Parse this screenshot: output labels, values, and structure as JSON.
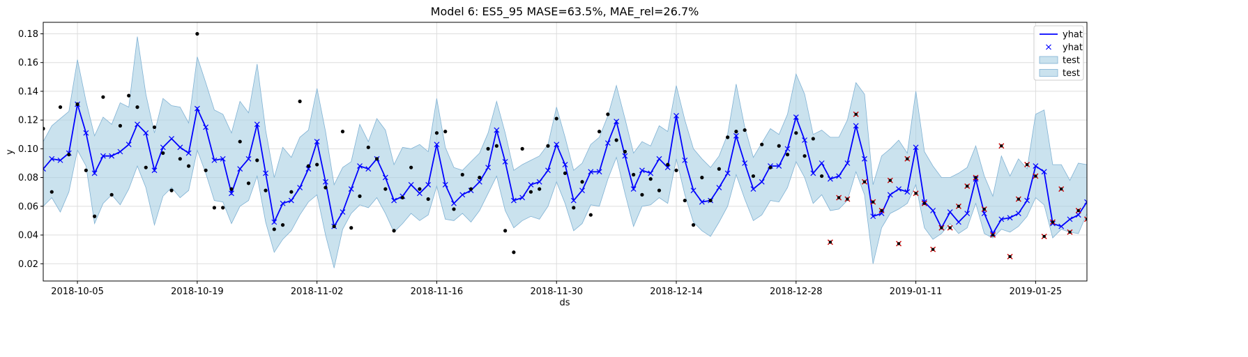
{
  "chart_data": {
    "type": "line",
    "title": "Model 6: ES5_95 MASE=63.5%, MAE_rel=26.7%",
    "xlabel": "ds",
    "ylabel": "y",
    "x_range": [
      "2018-10-01",
      "2019-01-31"
    ],
    "ylim": [
      0.008,
      0.188
    ],
    "grid": true,
    "legend_position": "top-right",
    "x_ticks": [
      "2018-10-05",
      "2018-10-19",
      "2018-11-02",
      "2018-11-16",
      "2018-11-30",
      "2018-12-14",
      "2018-12-28",
      "2019-01-11",
      "2019-01-25"
    ],
    "y_ticks": [
      0.02,
      0.04,
      0.06,
      0.08,
      0.1,
      0.12,
      0.14,
      0.16,
      0.18
    ],
    "y_tick_labels": [
      "0.02",
      "0.04",
      "0.06",
      "0.08",
      "0.10",
      "0.12",
      "0.14",
      "0.16",
      "0.18"
    ],
    "legend": [
      {
        "label": "yhat",
        "kind": "line"
      },
      {
        "label": "yhat",
        "kind": "marker"
      },
      {
        "label": "test",
        "kind": "band"
      },
      {
        "label": "test",
        "kind": "band"
      }
    ],
    "colors": {
      "forecast": "#0000ff",
      "band": "#a6cee3",
      "band_edge": "#7fb1d3",
      "actual": "#000000",
      "test_marker": "#cc0000",
      "grid": "#dddddd"
    },
    "start_date": "2018-10-01",
    "yhat": [
      0.086,
      0.093,
      0.092,
      0.097,
      0.131,
      0.111,
      0.083,
      0.095,
      0.095,
      0.098,
      0.103,
      0.117,
      0.111,
      0.085,
      0.101,
      0.107,
      0.101,
      0.097,
      0.128,
      0.115,
      0.092,
      0.093,
      0.069,
      0.086,
      0.093,
      0.117,
      0.083,
      0.049,
      0.062,
      0.064,
      0.073,
      0.086,
      0.105,
      0.077,
      0.046,
      0.056,
      0.072,
      0.088,
      0.086,
      0.093,
      0.08,
      0.064,
      0.067,
      0.075,
      0.069,
      0.075,
      0.103,
      0.075,
      0.062,
      0.068,
      0.071,
      0.077,
      0.087,
      0.113,
      0.091,
      0.064,
      0.066,
      0.075,
      0.077,
      0.085,
      0.103,
      0.089,
      0.064,
      0.071,
      0.084,
      0.084,
      0.104,
      0.119,
      0.095,
      0.072,
      0.085,
      0.083,
      0.093,
      0.087,
      0.123,
      0.092,
      0.071,
      0.063,
      0.064,
      0.073,
      0.083,
      0.109,
      0.09,
      0.072,
      0.077,
      0.088,
      0.088,
      0.1,
      0.122,
      0.106,
      0.083,
      0.09,
      0.079,
      0.081,
      0.09,
      0.116,
      0.093,
      0.053,
      0.055,
      0.068,
      0.072,
      0.07,
      0.101,
      0.063,
      0.057,
      0.045,
      0.056,
      0.049,
      0.055,
      0.079,
      0.055,
      0.041,
      0.051,
      0.052,
      0.055,
      0.064,
      0.088,
      0.084,
      0.048,
      0.046,
      0.051,
      0.054,
      0.063
    ],
    "lower": [
      0.06,
      0.066,
      0.056,
      0.07,
      0.099,
      0.088,
      0.048,
      0.062,
      0.068,
      0.061,
      0.072,
      0.088,
      0.073,
      0.047,
      0.067,
      0.073,
      0.066,
      0.071,
      0.099,
      0.083,
      0.064,
      0.063,
      0.048,
      0.06,
      0.064,
      0.081,
      0.049,
      0.028,
      0.037,
      0.043,
      0.054,
      0.063,
      0.068,
      0.04,
      0.017,
      0.044,
      0.055,
      0.061,
      0.059,
      0.066,
      0.055,
      0.042,
      0.048,
      0.055,
      0.05,
      0.054,
      0.074,
      0.051,
      0.05,
      0.055,
      0.049,
      0.057,
      0.069,
      0.081,
      0.057,
      0.045,
      0.05,
      0.053,
      0.051,
      0.06,
      0.077,
      0.062,
      0.043,
      0.048,
      0.061,
      0.06,
      0.079,
      0.094,
      0.069,
      0.046,
      0.06,
      0.061,
      0.066,
      0.062,
      0.093,
      0.068,
      0.049,
      0.043,
      0.039,
      0.049,
      0.06,
      0.082,
      0.065,
      0.05,
      0.054,
      0.064,
      0.063,
      0.073,
      0.091,
      0.08,
      0.062,
      0.068,
      0.057,
      0.058,
      0.064,
      0.084,
      0.068,
      0.02,
      0.045,
      0.055,
      0.058,
      0.062,
      0.075,
      0.045,
      0.037,
      0.041,
      0.048,
      0.041,
      0.045,
      0.062,
      0.041,
      0.038,
      0.044,
      0.042,
      0.046,
      0.053,
      0.066,
      0.061,
      0.038,
      0.044,
      0.042,
      0.041,
      0.055
    ],
    "upper": [
      0.105,
      0.116,
      0.121,
      0.126,
      0.162,
      0.133,
      0.109,
      0.122,
      0.117,
      0.132,
      0.129,
      0.178,
      0.138,
      0.111,
      0.135,
      0.13,
      0.129,
      0.118,
      0.164,
      0.146,
      0.127,
      0.124,
      0.111,
      0.133,
      0.125,
      0.159,
      0.113,
      0.08,
      0.101,
      0.094,
      0.108,
      0.113,
      0.142,
      0.112,
      0.075,
      0.087,
      0.091,
      0.117,
      0.105,
      0.121,
      0.113,
      0.089,
      0.101,
      0.1,
      0.103,
      0.098,
      0.135,
      0.101,
      0.087,
      0.085,
      0.091,
      0.097,
      0.111,
      0.133,
      0.111,
      0.085,
      0.089,
      0.092,
      0.095,
      0.103,
      0.129,
      0.108,
      0.085,
      0.09,
      0.103,
      0.108,
      0.123,
      0.144,
      0.121,
      0.097,
      0.105,
      0.102,
      0.116,
      0.112,
      0.144,
      0.12,
      0.1,
      0.093,
      0.087,
      0.095,
      0.11,
      0.145,
      0.115,
      0.094,
      0.104,
      0.114,
      0.11,
      0.124,
      0.152,
      0.138,
      0.11,
      0.113,
      0.108,
      0.108,
      0.12,
      0.146,
      0.138,
      0.075,
      0.095,
      0.1,
      0.106,
      0.097,
      0.14,
      0.098,
      0.088,
      0.08,
      0.08,
      0.083,
      0.087,
      0.102,
      0.081,
      0.067,
      0.095,
      0.081,
      0.093,
      0.086,
      0.124,
      0.127,
      0.089,
      0.089,
      0.078,
      0.09,
      0.089
    ],
    "actual_train": [
      [
        0,
        0.114
      ],
      [
        1,
        0.07
      ],
      [
        2,
        0.129
      ],
      [
        3,
        0.096
      ],
      [
        4,
        0.131
      ],
      [
        5,
        0.085
      ],
      [
        6,
        0.053
      ],
      [
        7,
        0.136
      ],
      [
        8,
        0.068
      ],
      [
        9,
        0.116
      ],
      [
        10,
        0.137
      ],
      [
        11,
        0.129
      ],
      [
        12,
        0.087
      ],
      [
        13,
        0.115
      ],
      [
        14,
        0.097
      ],
      [
        15,
        0.071
      ],
      [
        16,
        0.093
      ],
      [
        17,
        0.088
      ],
      [
        18,
        0.18
      ],
      [
        19,
        0.085
      ],
      [
        20,
        0.059
      ],
      [
        21,
        0.059
      ],
      [
        22,
        0.072
      ],
      [
        23,
        0.105
      ],
      [
        24,
        0.076
      ],
      [
        25,
        0.092
      ],
      [
        26,
        0.071
      ],
      [
        27,
        0.044
      ],
      [
        28,
        0.047
      ],
      [
        29,
        0.07
      ],
      [
        30,
        0.133
      ],
      [
        31,
        0.088
      ],
      [
        32,
        0.089
      ],
      [
        33,
        0.073
      ],
      [
        34,
        0.046
      ],
      [
        35,
        0.112
      ],
      [
        36,
        0.045
      ],
      [
        37,
        0.067
      ],
      [
        38,
        0.101
      ],
      [
        39,
        0.093
      ],
      [
        40,
        0.072
      ],
      [
        41,
        0.043
      ],
      [
        42,
        0.066
      ],
      [
        43,
        0.087
      ],
      [
        44,
        0.072
      ],
      [
        45,
        0.065
      ],
      [
        46,
        0.111
      ],
      [
        47,
        0.112
      ],
      [
        48,
        0.058
      ],
      [
        49,
        0.082
      ],
      [
        50,
        0.072
      ],
      [
        51,
        0.08
      ],
      [
        52,
        0.1
      ],
      [
        53,
        0.102
      ],
      [
        54,
        0.043
      ],
      [
        55,
        0.028
      ],
      [
        56,
        0.1
      ],
      [
        57,
        0.07
      ],
      [
        58,
        0.072
      ],
      [
        59,
        0.102
      ],
      [
        60,
        0.121
      ],
      [
        61,
        0.083
      ],
      [
        62,
        0.059
      ],
      [
        63,
        0.077
      ],
      [
        64,
        0.054
      ],
      [
        65,
        0.112
      ],
      [
        66,
        0.124
      ],
      [
        67,
        0.106
      ],
      [
        68,
        0.098
      ],
      [
        69,
        0.082
      ],
      [
        70,
        0.068
      ],
      [
        71,
        0.079
      ],
      [
        72,
        0.071
      ],
      [
        73,
        0.089
      ],
      [
        74,
        0.085
      ],
      [
        75,
        0.064
      ],
      [
        76,
        0.047
      ],
      [
        77,
        0.08
      ],
      [
        78,
        0.064
      ],
      [
        79,
        0.086
      ],
      [
        80,
        0.108
      ],
      [
        81,
        0.112
      ],
      [
        82,
        0.113
      ],
      [
        83,
        0.081
      ],
      [
        84,
        0.103
      ],
      [
        85,
        0.087
      ],
      [
        86,
        0.102
      ],
      [
        87,
        0.096
      ],
      [
        88,
        0.111
      ],
      [
        89,
        0.095
      ],
      [
        90,
        0.107
      ],
      [
        91,
        0.081
      ]
    ],
    "actual_test": [
      [
        92,
        0.035
      ],
      [
        93,
        0.066
      ],
      [
        94,
        0.065
      ],
      [
        95,
        0.124
      ],
      [
        96,
        0.077
      ],
      [
        97,
        0.063
      ],
      [
        98,
        0.057
      ],
      [
        99,
        0.078
      ],
      [
        100,
        0.034
      ],
      [
        101,
        0.093
      ],
      [
        102,
        0.069
      ],
      [
        103,
        0.062
      ],
      [
        104,
        0.03
      ],
      [
        105,
        0.045
      ],
      [
        106,
        0.045
      ],
      [
        107,
        0.06
      ],
      [
        108,
        0.074
      ],
      [
        109,
        0.08
      ],
      [
        110,
        0.058
      ],
      [
        111,
        0.04
      ],
      [
        112,
        0.102
      ],
      [
        113,
        0.025
      ],
      [
        114,
        0.065
      ],
      [
        115,
        0.089
      ],
      [
        116,
        0.081
      ],
      [
        117,
        0.039
      ],
      [
        118,
        0.049
      ],
      [
        119,
        0.072
      ],
      [
        120,
        0.042
      ],
      [
        121,
        0.057
      ],
      [
        122,
        0.051
      ]
    ]
  }
}
